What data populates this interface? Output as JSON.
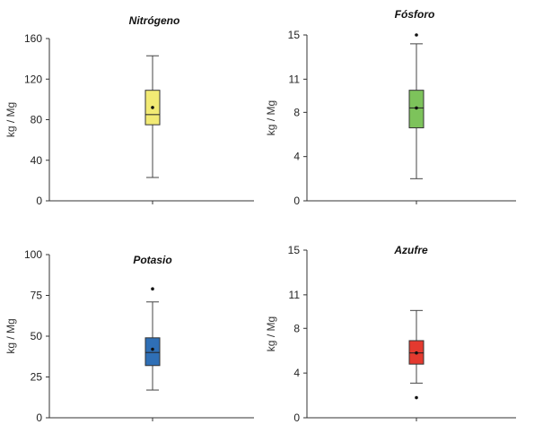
{
  "chart_data": [
    {
      "type": "boxplot",
      "title": "Nitrógeno",
      "ylabel": "kg / Mg",
      "ylim": [
        0,
        160
      ],
      "yticks": [
        "0",
        "40",
        "80",
        "120",
        "160"
      ],
      "box_color": "#f2ea74",
      "box": {
        "min": 23,
        "q1": 75,
        "median": 85,
        "q3": 109,
        "max": 143,
        "mean": 92
      },
      "outliers": []
    },
    {
      "type": "boxplot",
      "title": "Fósforo",
      "ylabel": "kg / Mg",
      "ylim": [
        0,
        15
      ],
      "yticks": [
        "0",
        "4",
        "8",
        "11",
        "15"
      ],
      "box_color": "#7dc35b",
      "box": {
        "min": 2.0,
        "q1": 6.6,
        "median": 8.4,
        "q3": 10.0,
        "max": 14.2,
        "mean": 8.4
      },
      "outliers": [
        15.0
      ]
    },
    {
      "type": "boxplot",
      "title": "Potasio",
      "ylabel": "kg / Mg",
      "ylim": [
        0,
        100
      ],
      "yticks": [
        "0",
        "25",
        "50",
        "75",
        "100"
      ],
      "box_color": "#2f6fb6",
      "box": {
        "min": 17,
        "q1": 32,
        "median": 40,
        "q3": 49,
        "max": 71,
        "mean": 42
      },
      "outliers": [
        79
      ]
    },
    {
      "type": "boxplot",
      "title": "Azufre",
      "ylabel": "kg / Mg",
      "ylim": [
        0,
        15
      ],
      "yticks": [
        "0",
        "4",
        "8",
        "11",
        "15"
      ],
      "box_color": "#e43a2f",
      "box": {
        "min": 3.1,
        "q1": 4.8,
        "median": 5.8,
        "q3": 6.9,
        "max": 9.6,
        "mean": 5.8
      },
      "outliers": [
        1.8
      ]
    }
  ]
}
